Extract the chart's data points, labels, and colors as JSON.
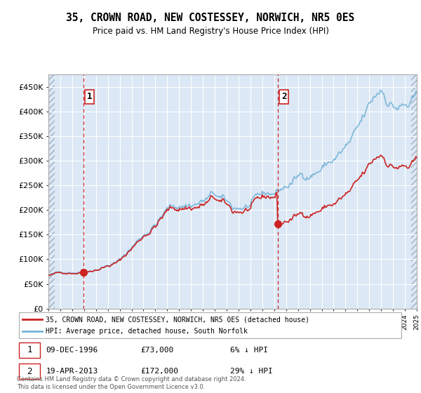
{
  "title": "35, CROWN ROAD, NEW COSTESSEY, NORWICH, NR5 0ES",
  "subtitle": "Price paid vs. HM Land Registry's House Price Index (HPI)",
  "ylabel_ticks": [
    "£0",
    "£50K",
    "£100K",
    "£150K",
    "£200K",
    "£250K",
    "£300K",
    "£350K",
    "£400K",
    "£450K"
  ],
  "ytick_values": [
    0,
    50000,
    100000,
    150000,
    200000,
    250000,
    300000,
    350000,
    400000,
    450000
  ],
  "ylim": [
    0,
    475000
  ],
  "xlim_start": 1994.0,
  "xlim_end": 2025.0,
  "transaction1_date": 1996.94,
  "transaction1_price": 73000,
  "transaction2_date": 2013.29,
  "transaction2_price": 172000,
  "hpi_color": "#74b3d8",
  "price_color": "#cc2222",
  "dashed_color": "#cc2222",
  "legend_entry1": "35, CROWN ROAD, NEW COSTESSEY, NORWICH, NR5 0ES (detached house)",
  "legend_entry2": "HPI: Average price, detached house, South Norfolk",
  "footer": "Contains HM Land Registry data © Crown copyright and database right 2024.\nThis data is licensed under the Open Government Licence v3.0.",
  "note1_date": "09-DEC-1996",
  "note1_price": "£73,000",
  "note1_pct": "6% ↓ HPI",
  "note2_date": "19-APR-2013",
  "note2_price": "£172,000",
  "note2_pct": "29% ↓ HPI"
}
